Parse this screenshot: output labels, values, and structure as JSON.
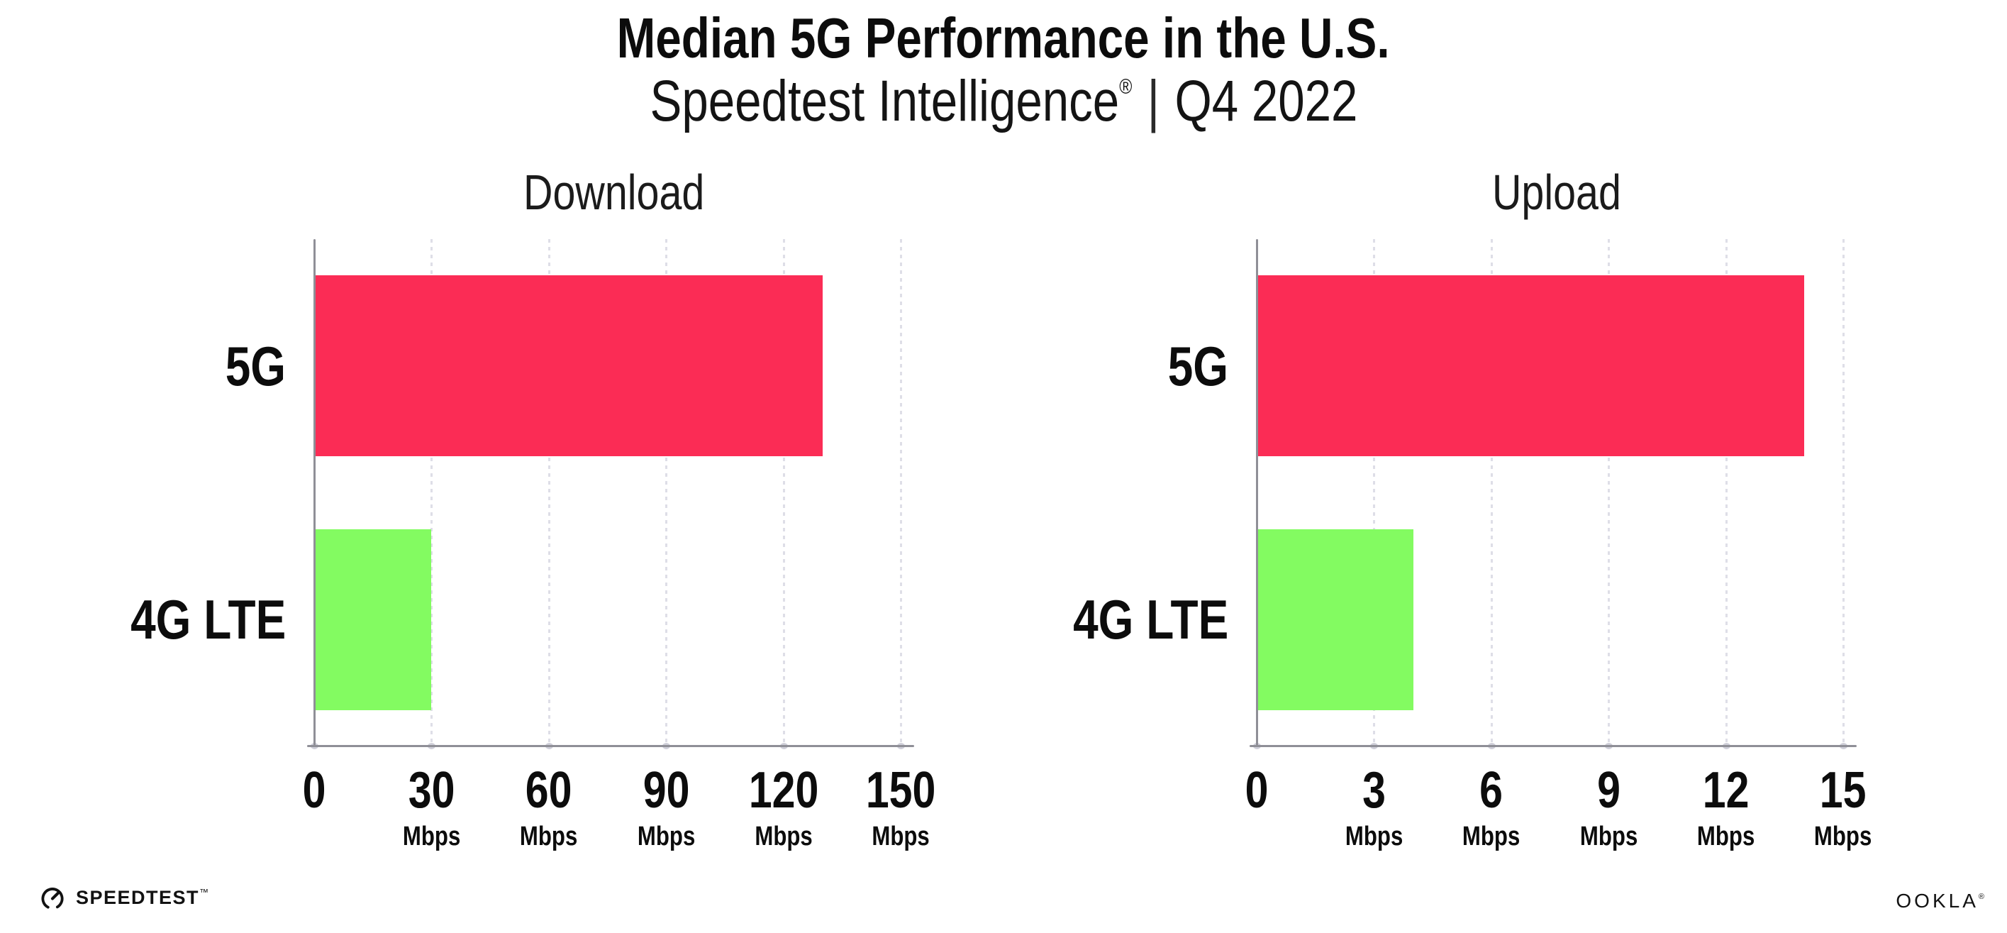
{
  "header": {
    "title": "Median 5G Performance in the U.S.",
    "subtitle_brand": "Speedtest Intelligence",
    "subtitle_reg": "®",
    "subtitle_sep": "|",
    "subtitle_period": "Q4 2022"
  },
  "chart_data": [
    {
      "type": "bar",
      "orientation": "horizontal",
      "title": "Download",
      "categories": [
        "5G",
        "4G LTE"
      ],
      "values": [
        130,
        30
      ],
      "unit": "Mbps",
      "ticks": [
        0,
        30,
        60,
        90,
        120,
        150
      ],
      "xlim": [
        0,
        150
      ],
      "bar_colors": [
        "#fb2c55",
        "#83fb61"
      ],
      "grid": "dotted-vertical",
      "legend": "none"
    },
    {
      "type": "bar",
      "orientation": "horizontal",
      "title": "Upload",
      "categories": [
        "5G",
        "4G LTE"
      ],
      "values": [
        14,
        4
      ],
      "unit": "Mbps",
      "ticks": [
        0,
        3,
        6,
        9,
        12,
        15
      ],
      "xlim": [
        0,
        15
      ],
      "bar_colors": [
        "#fb2c55",
        "#83fb61"
      ],
      "grid": "dotted-vertical",
      "legend": "none"
    }
  ],
  "colors": {
    "bar_5g": "#fb2c55",
    "bar_4g_lte": "#83fb61",
    "axis": "#8f8f97",
    "grid": "#dedee7",
    "text": "#0c0c0c"
  },
  "footer": {
    "speedtest_label": "SPEEDTEST",
    "speedtest_tm": "™",
    "ookla_label": "OOKLA",
    "ookla_reg": "®"
  }
}
